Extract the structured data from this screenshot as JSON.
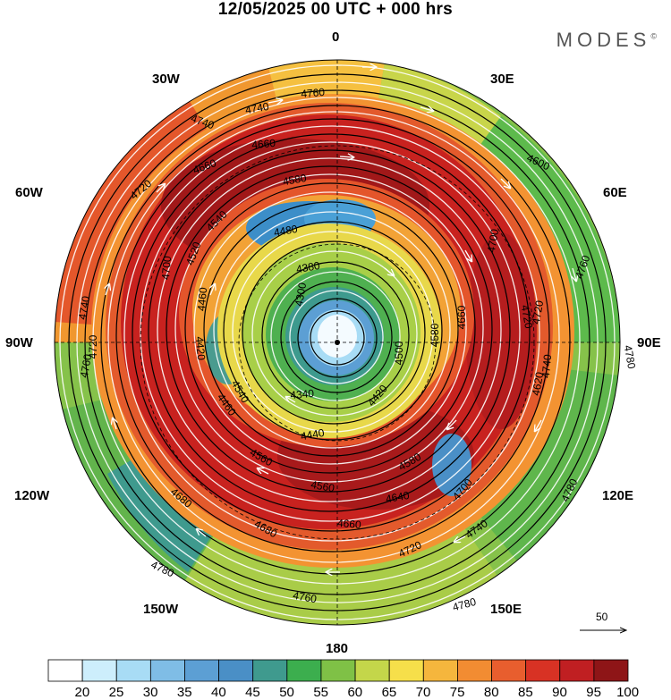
{
  "title": "12/05/2025  00 UTC  + 000 hrs",
  "brand": "MODES",
  "brand_mark": "©",
  "longitude_labels": {
    "top": "0",
    "top_left": "30W",
    "top_right": "30E",
    "upper_left": "60W",
    "upper_right": "60E",
    "left": "90W",
    "right": "90E",
    "lower_left": "120W",
    "lower_right": "120E",
    "bottom_left": "150W",
    "bottom_right": "150E",
    "bottom": "180"
  },
  "contour_labels": [
    "4760",
    "4740",
    "4740",
    "4720",
    "4660",
    "4660",
    "4580",
    "4520",
    "4540",
    "4480",
    "4700",
    "4740",
    "4380",
    "4460",
    "4420",
    "4300",
    "4540",
    "4560",
    "4500",
    "4580",
    "4660",
    "4720",
    "4680",
    "4760",
    "4780",
    "4700",
    "4740",
    "4720",
    "4760",
    "4340",
    "4420",
    "4460",
    "4440",
    "4600",
    "4620",
    "4640",
    "4560",
    "4580",
    "4660",
    "4680",
    "4720",
    "4700",
    "4740",
    "4760",
    "4780",
    "4780",
    "4780",
    "4720"
  ],
  "reference_vector": "50",
  "colorbar": {
    "labels": [
      "20",
      "25",
      "30",
      "35",
      "40",
      "45",
      "50",
      "55",
      "60",
      "65",
      "70",
      "75",
      "80",
      "85",
      "90",
      "95",
      "100"
    ],
    "colors": [
      "#ffffff",
      "#cdeefc",
      "#a8dcf5",
      "#7fbde6",
      "#5c9fd4",
      "#4a8fc6",
      "#3f9a8e",
      "#3cae4e",
      "#7fc146",
      "#c4d64a",
      "#f6df4a",
      "#f5b63d",
      "#f28c32",
      "#e85e2e",
      "#d83224",
      "#c01f22",
      "#8e1517"
    ]
  }
}
